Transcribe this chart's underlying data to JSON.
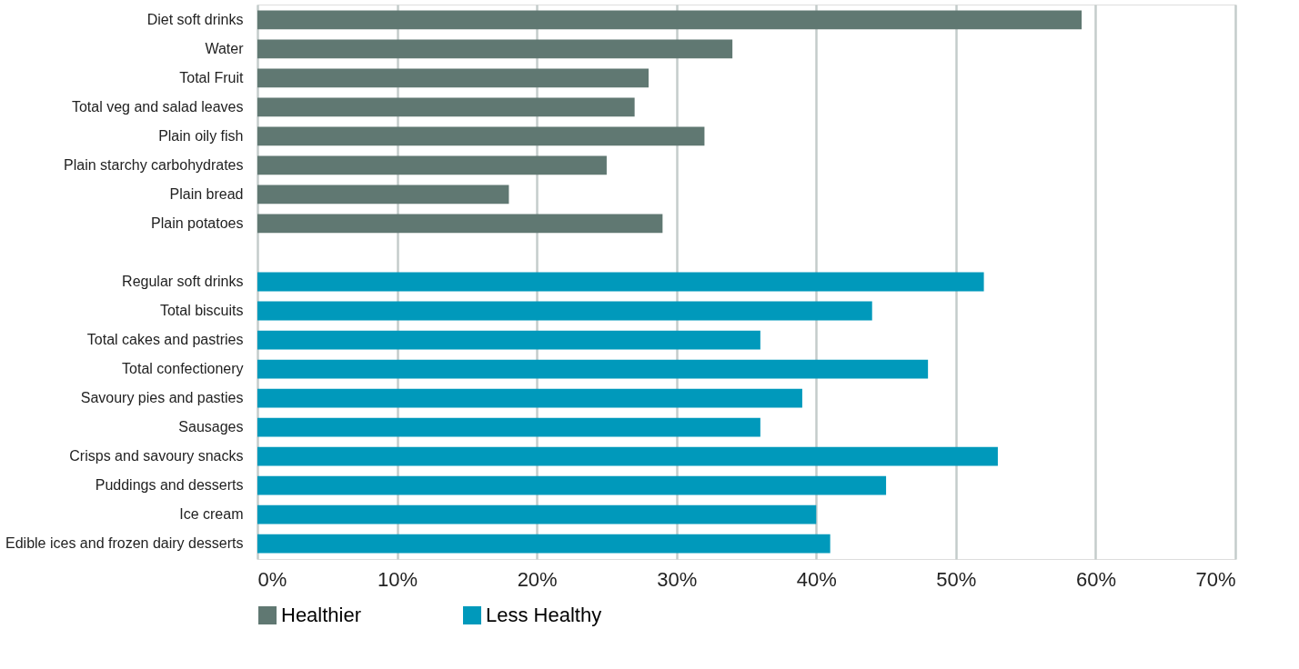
{
  "chart_data": {
    "type": "bar",
    "orientation": "horizontal",
    "categories": [
      "Diet soft drinks",
      "Water",
      "Total Fruit",
      "Total veg and salad leaves",
      "Plain oily fish",
      "Plain starchy carbohydrates",
      "Plain bread",
      "Plain potatoes",
      null,
      "Regular soft drinks",
      "Total biscuits",
      "Total cakes and pastries",
      "Total confectionery",
      "Savoury pies and pasties",
      "Sausages",
      "Crisps and savoury snacks",
      "Puddings and desserts",
      "Ice cream",
      "Edible ices and frozen dairy desserts"
    ],
    "series": [
      {
        "name": "Healthier",
        "color": "#607872",
        "values": [
          59,
          34,
          28,
          27,
          32,
          25,
          18,
          29,
          null,
          null,
          null,
          null,
          null,
          null,
          null,
          null,
          null,
          null,
          null
        ]
      },
      {
        "name": "Less Healthy",
        "color": "#0099bb",
        "values": [
          null,
          null,
          null,
          null,
          null,
          null,
          null,
          null,
          null,
          52,
          44,
          36,
          48,
          39,
          36,
          53,
          45,
          40,
          41
        ]
      }
    ],
    "xlim": [
      0,
      70
    ],
    "xticks": [
      {
        "value": 0,
        "label": "0%"
      },
      {
        "value": 10,
        "label": "10%"
      },
      {
        "value": 20,
        "label": "20%"
      },
      {
        "value": 30,
        "label": "30%"
      },
      {
        "value": 40,
        "label": "40%"
      },
      {
        "value": 50,
        "label": "50%"
      },
      {
        "value": 60,
        "label": "60%"
      },
      {
        "value": 70,
        "label": "70%"
      }
    ],
    "grid": "x",
    "legend": "bottom"
  }
}
